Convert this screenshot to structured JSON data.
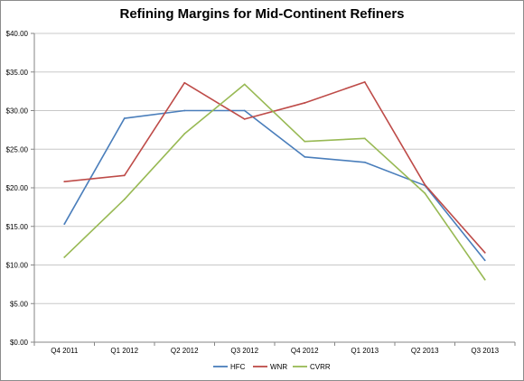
{
  "chart_data": {
    "type": "line",
    "title": "Refining Margins for Mid-Continent Refiners",
    "categories": [
      "Q4 2011",
      "Q1 2012",
      "Q2 2012",
      "Q3 2012",
      "Q4 2012",
      "Q1 2013",
      "Q2 2013",
      "Q3 2013"
    ],
    "y_ticks": [
      "$0.00",
      "$5.00",
      "$10.00",
      "$15.00",
      "$20.00",
      "$25.00",
      "$30.00",
      "$35.00",
      "$40.00"
    ],
    "ylim": [
      0,
      40
    ],
    "grid": true,
    "legend_position": "bottom",
    "series": [
      {
        "name": "HFC",
        "color": "#4a7ebb",
        "values": [
          15.3,
          29.0,
          30.0,
          30.0,
          24.0,
          23.3,
          20.3,
          10.6
        ]
      },
      {
        "name": "WNR",
        "color": "#be4b48",
        "values": [
          20.8,
          21.6,
          33.6,
          28.9,
          31.0,
          33.7,
          20.4,
          11.6
        ]
      },
      {
        "name": "CVRR",
        "color": "#98b954",
        "values": [
          11.0,
          18.5,
          27.0,
          33.4,
          26.0,
          26.4,
          19.3,
          8.1
        ]
      }
    ]
  }
}
